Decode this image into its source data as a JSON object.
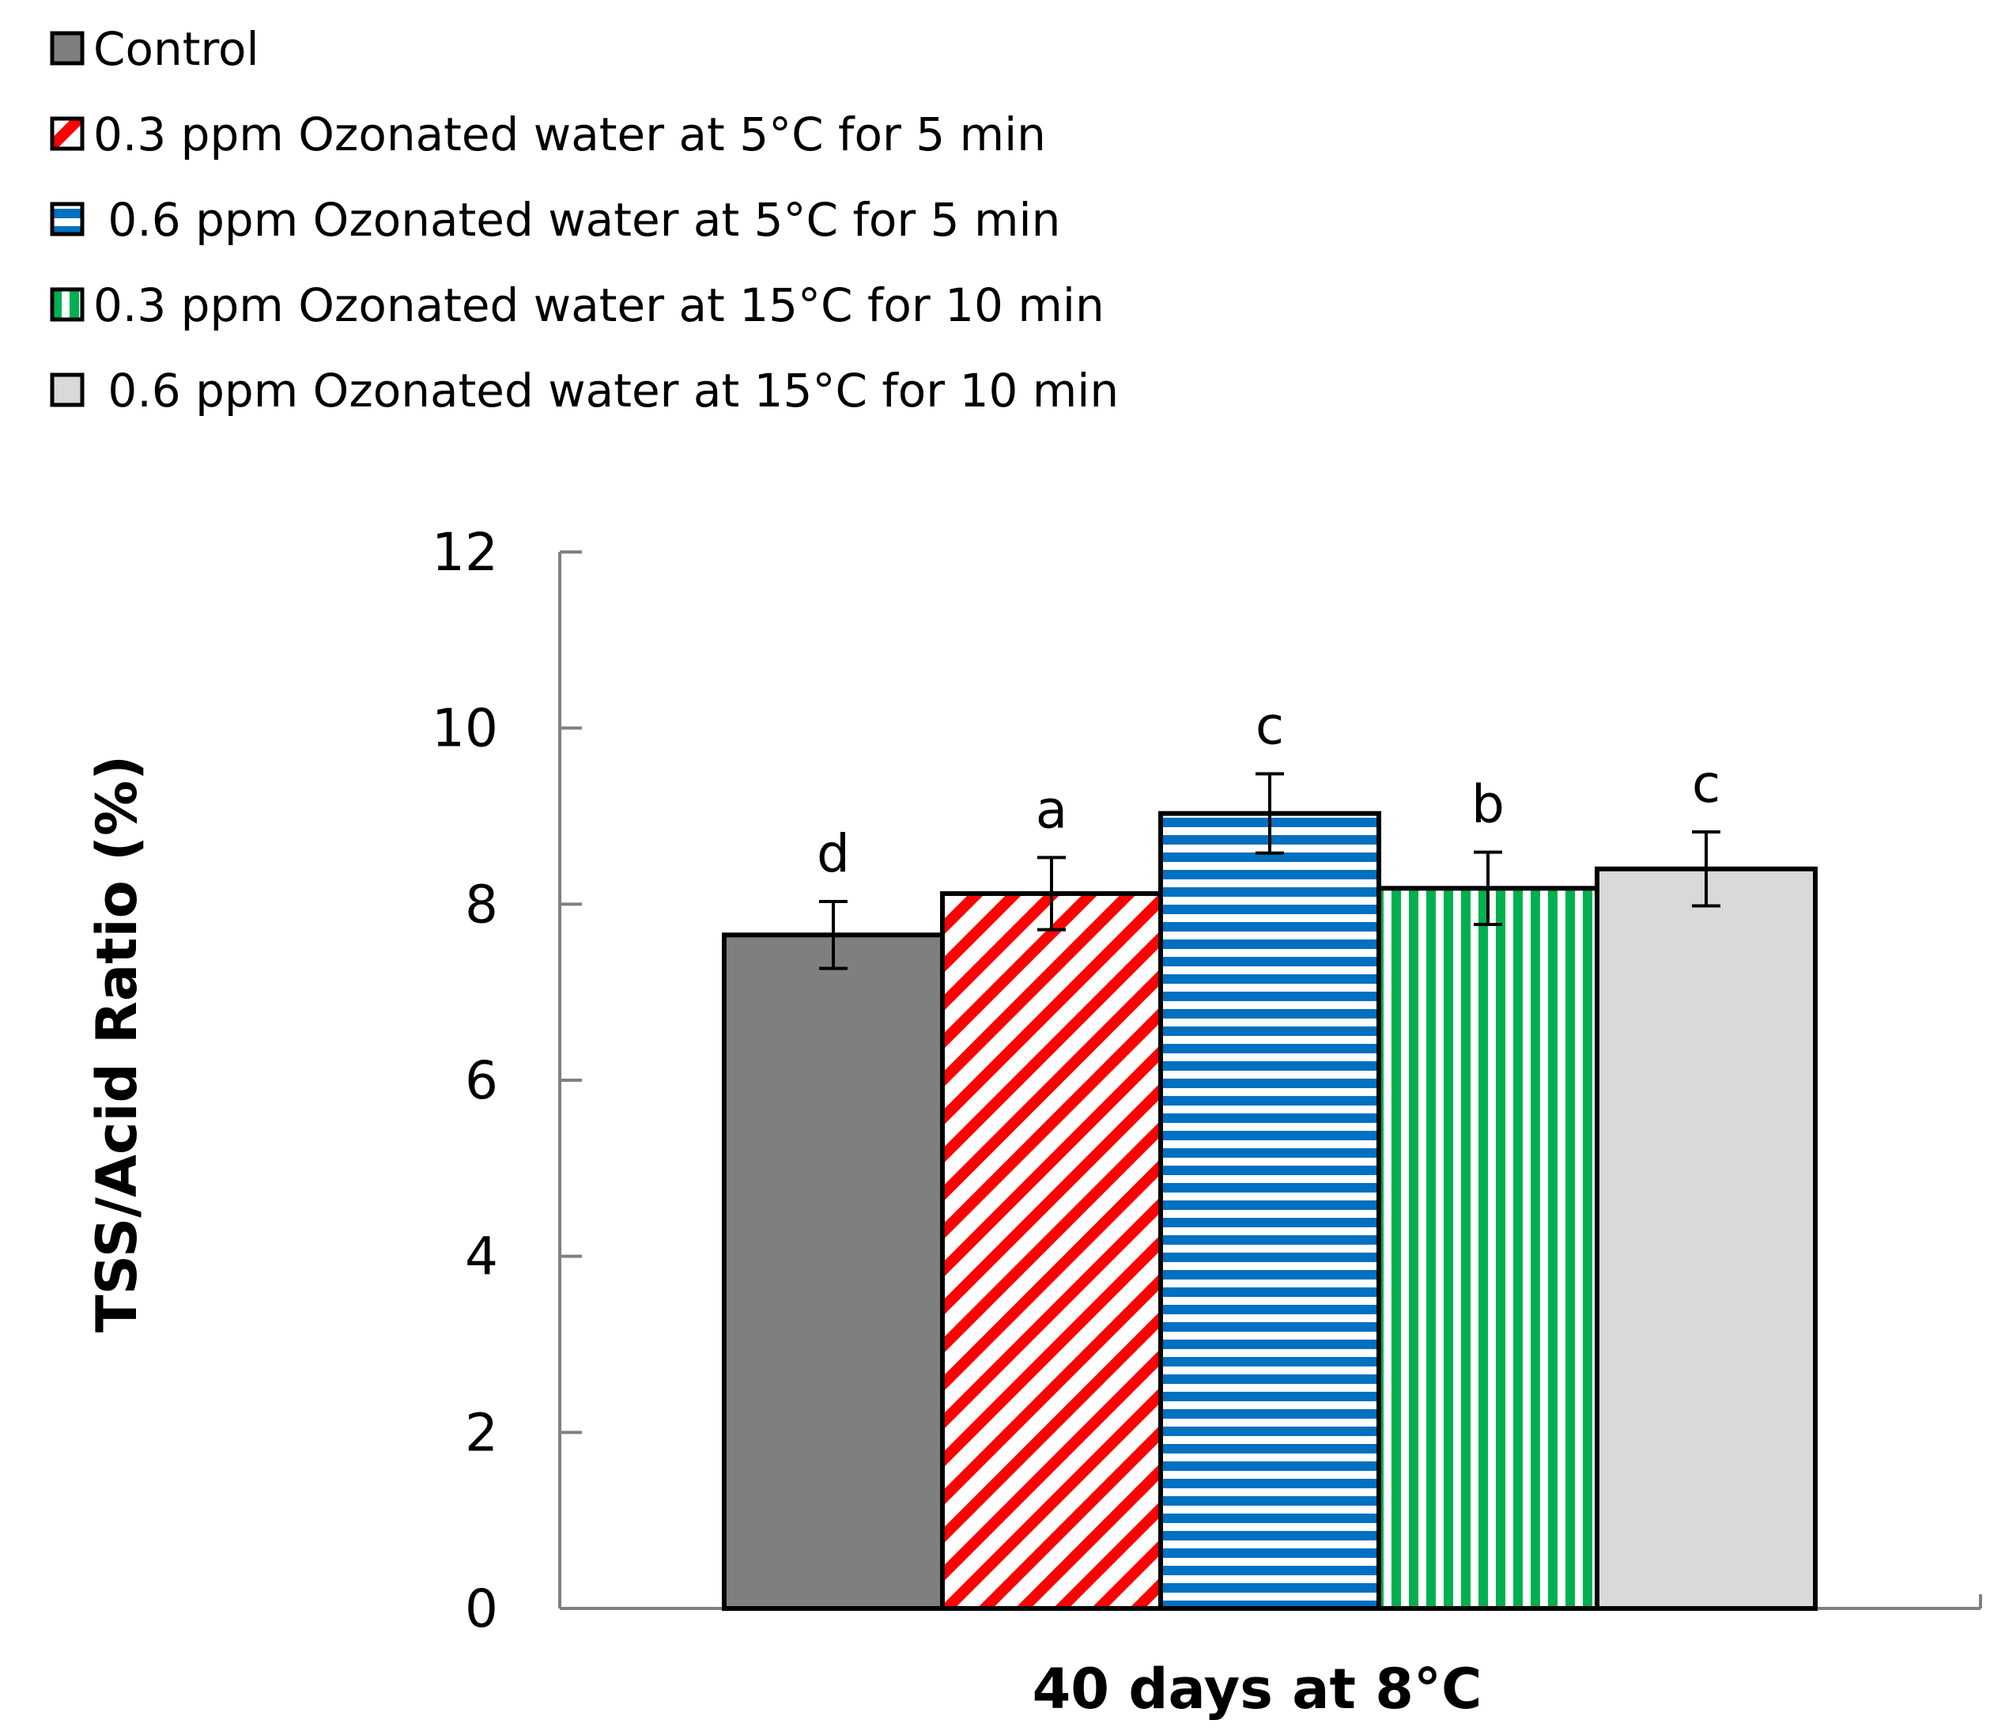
{
  "chart_data": {
    "type": "bar",
    "title": "",
    "xlabel": "40 days at 8°C",
    "ylabel": "TSS/Acid Ratio (%)",
    "ylim": [
      0,
      12
    ],
    "yticks": [
      0,
      2,
      4,
      6,
      8,
      10,
      12
    ],
    "ytick_labels": [
      "0",
      "2",
      "4",
      "6",
      "8",
      "10",
      "12"
    ],
    "categories": [
      "40 days at 8°C"
    ],
    "legend_position": "top-left",
    "series": [
      {
        "name": "Control",
        "values": [
          7.65
        ],
        "error": [
          0.38
        ],
        "letter": "d",
        "color": "#7f7f7f",
        "pattern": "solid"
      },
      {
        "name": "0.3 ppm Ozonated water at 5°C for 5 min",
        "values": [
          8.12
        ],
        "error": [
          0.41
        ],
        "letter": "a",
        "color": "#ff0000",
        "pattern": "diagonal"
      },
      {
        "name": " 0.6 ppm Ozonated water at 5°C for 5 min",
        "values": [
          9.03
        ],
        "error": [
          0.45
        ],
        "letter": "c",
        "color": "#0070c0",
        "pattern": "horizontal"
      },
      {
        "name": "0.3 ppm Ozonated water at 15°C for 10 min",
        "values": [
          8.18
        ],
        "error": [
          0.41
        ],
        "letter": "b",
        "color": "#00b050",
        "pattern": "vertical"
      },
      {
        "name": " 0.6 ppm Ozonated water at 15°C for 10 min",
        "values": [
          8.4
        ],
        "error": [
          0.42
        ],
        "letter": "c",
        "color": "#d9d9d9",
        "pattern": "solid"
      }
    ]
  }
}
